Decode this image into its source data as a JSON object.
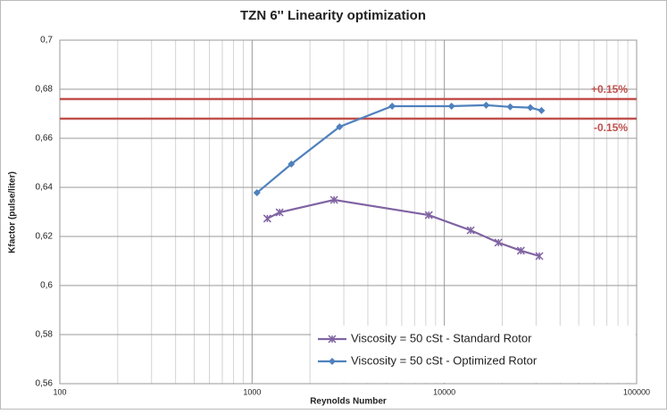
{
  "chart_data": {
    "type": "line",
    "title": "TZN 6'' Linearity optimization",
    "xlabel": "Reynolds Number",
    "ylabel": "Kfactor (pulse/liter)",
    "xscale": "log",
    "grid": true,
    "minor_grid": true,
    "legend": "lower right",
    "xlim": [
      100,
      100000
    ],
    "xticks": [
      100,
      1000,
      10000,
      100000
    ],
    "ylim": [
      0.56,
      0.7
    ],
    "yticks": [
      {
        "value": 0.56,
        "label": "0,56"
      },
      {
        "value": 0.58,
        "label": "0,58"
      },
      {
        "value": 0.6,
        "label": "0,6"
      },
      {
        "value": 0.62,
        "label": "0,62"
      },
      {
        "value": 0.64,
        "label": "0,64"
      },
      {
        "value": 0.66,
        "label": "0,66"
      },
      {
        "value": 0.68,
        "label": "0,68"
      },
      {
        "value": 0.7,
        "label": "0,7"
      }
    ],
    "reference_lines": [
      {
        "value": 0.676,
        "label": "+0.15%",
        "color": "#c0504d"
      },
      {
        "value": 0.668,
        "label": "-0.15%",
        "color": "#c0504d"
      }
    ],
    "series": [
      {
        "name": "Viscosity = 50 cSt - Standard Rotor",
        "color": "#8064a2",
        "marker": "x",
        "x": [
          1200,
          1390,
          2670,
          8300,
          13700,
          19100,
          25000,
          31200
        ],
        "values": [
          0.6273,
          0.6298,
          0.6349,
          0.6287,
          0.6225,
          0.6175,
          0.6142,
          0.612
        ]
      },
      {
        "name": "Viscosity = 50 cSt - Optimized Rotor",
        "color": "#4f81bd",
        "marker": "diamond",
        "x": [
          1060,
          1600,
          2850,
          5350,
          10900,
          16500,
          22000,
          28000,
          32000
        ],
        "values": [
          0.6378,
          0.6495,
          0.6647,
          0.6731,
          0.6731,
          0.6735,
          0.6728,
          0.6725,
          0.6713
        ]
      }
    ]
  }
}
